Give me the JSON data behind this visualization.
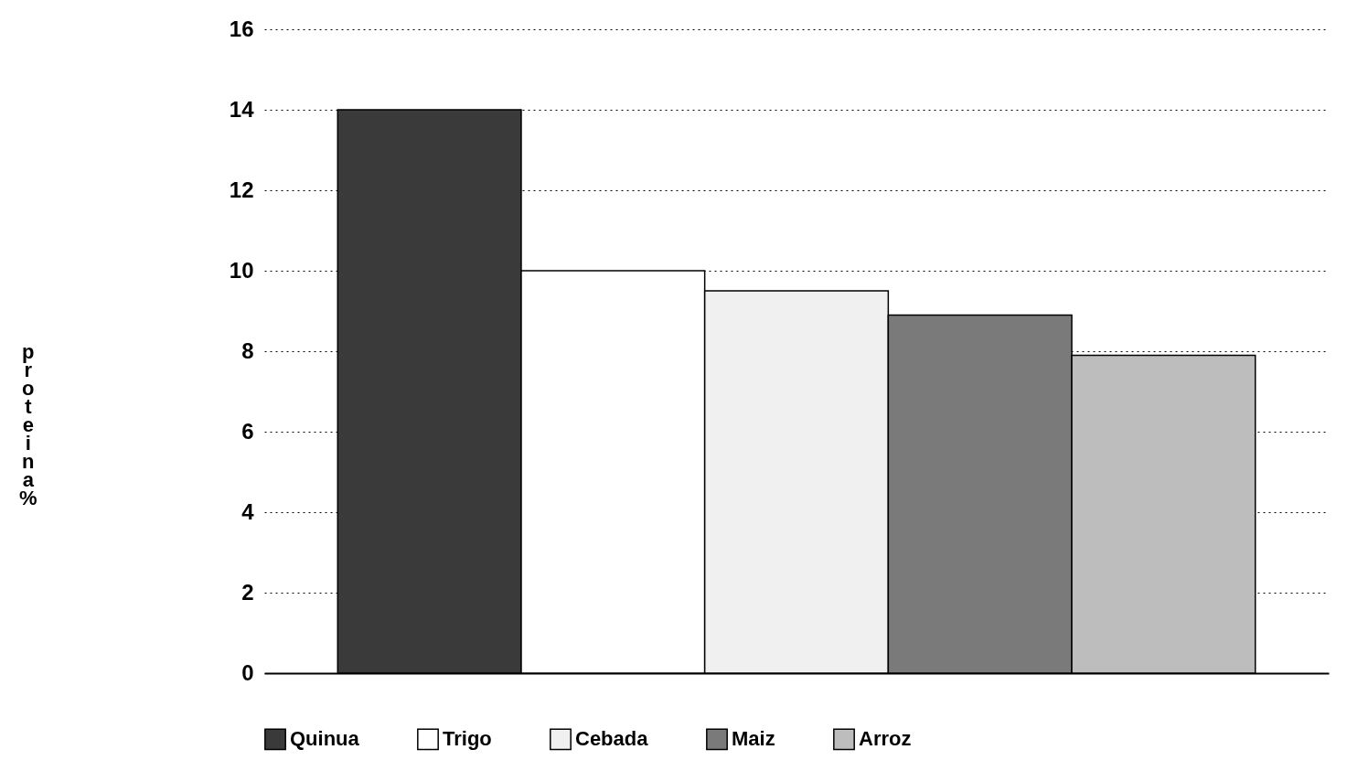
{
  "chart_data": {
    "type": "bar",
    "ylabel": "proteina %",
    "categories": [
      null,
      null,
      null,
      null,
      null
    ],
    "series": [
      {
        "name": "Quinua",
        "color": "#3a3a3a",
        "values": [
          14,
          null,
          null,
          null,
          null
        ]
      },
      {
        "name": "Trigo",
        "color": "#ffffff",
        "values": [
          null,
          10,
          null,
          null,
          null
        ]
      },
      {
        "name": "Cebada",
        "color": "#f0f0f0",
        "values": [
          null,
          null,
          9.5,
          null,
          null
        ]
      },
      {
        "name": "Maiz",
        "color": "#7a7a7a",
        "values": [
          null,
          null,
          null,
          8.9,
          null
        ]
      },
      {
        "name": "Arroz",
        "color": "#bdbdbd",
        "values": [
          null,
          null,
          null,
          null,
          7.9
        ]
      }
    ],
    "ylim": [
      0,
      16
    ],
    "yticks": [
      0,
      2,
      4,
      6,
      8,
      10,
      12,
      14,
      16
    ],
    "grid": "y",
    "legend": "bottom",
    "tick_labels": "y",
    "line_style": "dotted"
  }
}
